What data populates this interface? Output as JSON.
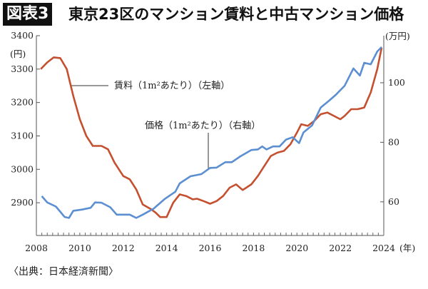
{
  "header": {
    "badge": "図表3",
    "title": "東京23区のマンション賃料と中古マンション価格"
  },
  "source": "〈出典：日本経済新聞〉",
  "chart_data": {
    "type": "line",
    "title": "東京23区のマンション賃料と中古マンション価格",
    "x_ticks": [
      "2008",
      "2010",
      "2012",
      "2014",
      "2016",
      "2018",
      "2020",
      "2022",
      "2024"
    ],
    "x_unit": "(年)",
    "xlim": [
      2008,
      2024
    ],
    "left_axis": {
      "unit": "(円)",
      "ticks": [
        "2900",
        "3000",
        "3100",
        "3200",
        "3300",
        "3400"
      ],
      "ylim": [
        2802,
        3400
      ]
    },
    "right_axis": {
      "unit": "(万円)",
      "ticks": [
        "60",
        "80",
        "100"
      ],
      "ylim": [
        48.7,
        115.8
      ]
    },
    "grid": false,
    "series": [
      {
        "name": "賃料（1m²あたり）（左軸）",
        "axis": "left",
        "color": "#c4502f",
        "x": [
          2008.2,
          2008.5,
          2008.8,
          2009.1,
          2009.4,
          2009.7,
          2010.0,
          2010.3,
          2010.6,
          2011.0,
          2011.3,
          2011.6,
          2012.0,
          2012.3,
          2012.6,
          2012.9,
          2013.3,
          2013.5,
          2013.7,
          2014.0,
          2014.3,
          2014.6,
          2014.9,
          2015.2,
          2015.4,
          2015.7,
          2016.0,
          2016.3,
          2016.6,
          2016.9,
          2017.2,
          2017.5,
          2017.9,
          2018.2,
          2018.5,
          2018.8,
          2019.1,
          2019.4,
          2019.7,
          2020.0,
          2020.2,
          2020.5,
          2020.8,
          2021.1,
          2021.4,
          2021.7,
          2022.0,
          2022.2,
          2022.5,
          2022.8,
          2023.1,
          2023.4,
          2023.7,
          2023.9
        ],
        "y": [
          3300,
          3320,
          3335,
          3333,
          3300,
          3220,
          3150,
          3100,
          3070,
          3070,
          3060,
          3020,
          2980,
          2970,
          2940,
          2895,
          2880,
          2870,
          2857,
          2857,
          2900,
          2925,
          2920,
          2910,
          2912,
          2905,
          2897,
          2905,
          2920,
          2945,
          2955,
          2938,
          2955,
          2980,
          3010,
          3040,
          3050,
          3055,
          3075,
          3110,
          3135,
          3130,
          3145,
          3165,
          3170,
          3160,
          3150,
          3160,
          3180,
          3180,
          3185,
          3230,
          3300,
          3364
        ]
      },
      {
        "name": "価格（1m²あたり）（右軸）",
        "axis": "right",
        "color": "#5b8fd2",
        "x": [
          2008.25,
          2008.5,
          2008.9,
          2009.3,
          2009.5,
          2009.7,
          2010.1,
          2010.5,
          2010.7,
          2011.0,
          2011.4,
          2011.7,
          2012.3,
          2012.6,
          2012.9,
          2013.4,
          2013.9,
          2014.4,
          2014.6,
          2015.1,
          2015.6,
          2016.0,
          2016.3,
          2016.7,
          2017.0,
          2017.4,
          2017.9,
          2018.2,
          2018.4,
          2018.6,
          2018.9,
          2019.2,
          2019.5,
          2019.8,
          2020.1,
          2020.3,
          2020.7,
          2021.1,
          2021.5,
          2021.8,
          2022.2,
          2022.6,
          2022.9,
          2023.1,
          2023.4,
          2023.7,
          2023.9
        ],
        "y": [
          61.9,
          59.8,
          58.4,
          54.9,
          54.6,
          57.0,
          57.4,
          58.0,
          59.8,
          59.7,
          58.2,
          55.7,
          55.7,
          54.6,
          55.7,
          57.7,
          60.9,
          63.4,
          66.2,
          68.6,
          69.3,
          71.4,
          71.5,
          73.3,
          73.3,
          75.3,
          77.4,
          77.6,
          78.6,
          77.6,
          78.6,
          78.6,
          80.9,
          81.7,
          79.7,
          83.3,
          85.7,
          91.7,
          94.1,
          96.0,
          99.0,
          104.8,
          102.4,
          106.7,
          106.2,
          110.5,
          112.0
        ]
      }
    ]
  }
}
